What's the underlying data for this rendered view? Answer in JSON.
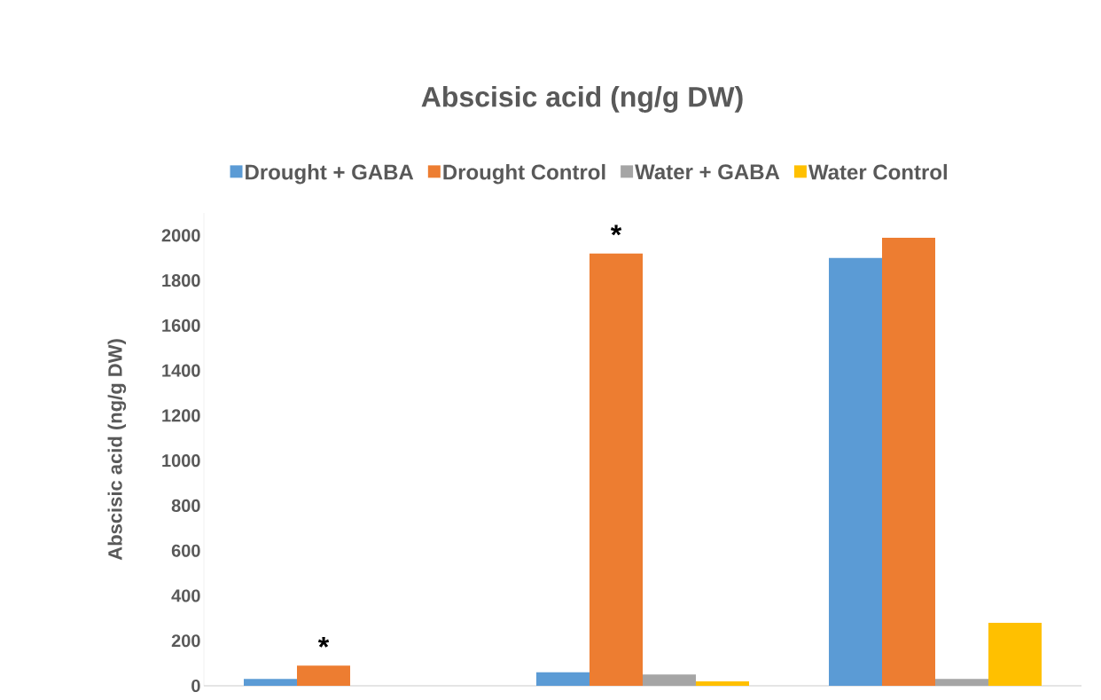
{
  "chart_data": {
    "type": "bar",
    "title": "Abscisic acid (ng/g DW)",
    "ylabel": "Abscisic acid (ng/g DW)",
    "categories": [
      null,
      null,
      null
    ],
    "series": [
      {
        "name": "Drought + GABA",
        "color": "#5b9bd5",
        "values": [
          30,
          60,
          1900
        ]
      },
      {
        "name": "Drought Control",
        "color": "#ed7d31",
        "values": [
          90,
          1920,
          1990
        ]
      },
      {
        "name": "Water + GABA",
        "color": "#a5a5a5",
        "values": [
          null,
          50,
          30
        ]
      },
      {
        "name": "Water Control",
        "color": "#ffc000",
        "values": [
          null,
          20,
          280
        ]
      }
    ],
    "ylim": [
      0,
      2100
    ],
    "yticks": [
      0,
      200,
      400,
      600,
      800,
      1000,
      1200,
      1400,
      1600,
      1800,
      2000
    ],
    "legend": "top",
    "grid": false,
    "annotations": [
      "*",
      "*"
    ]
  }
}
